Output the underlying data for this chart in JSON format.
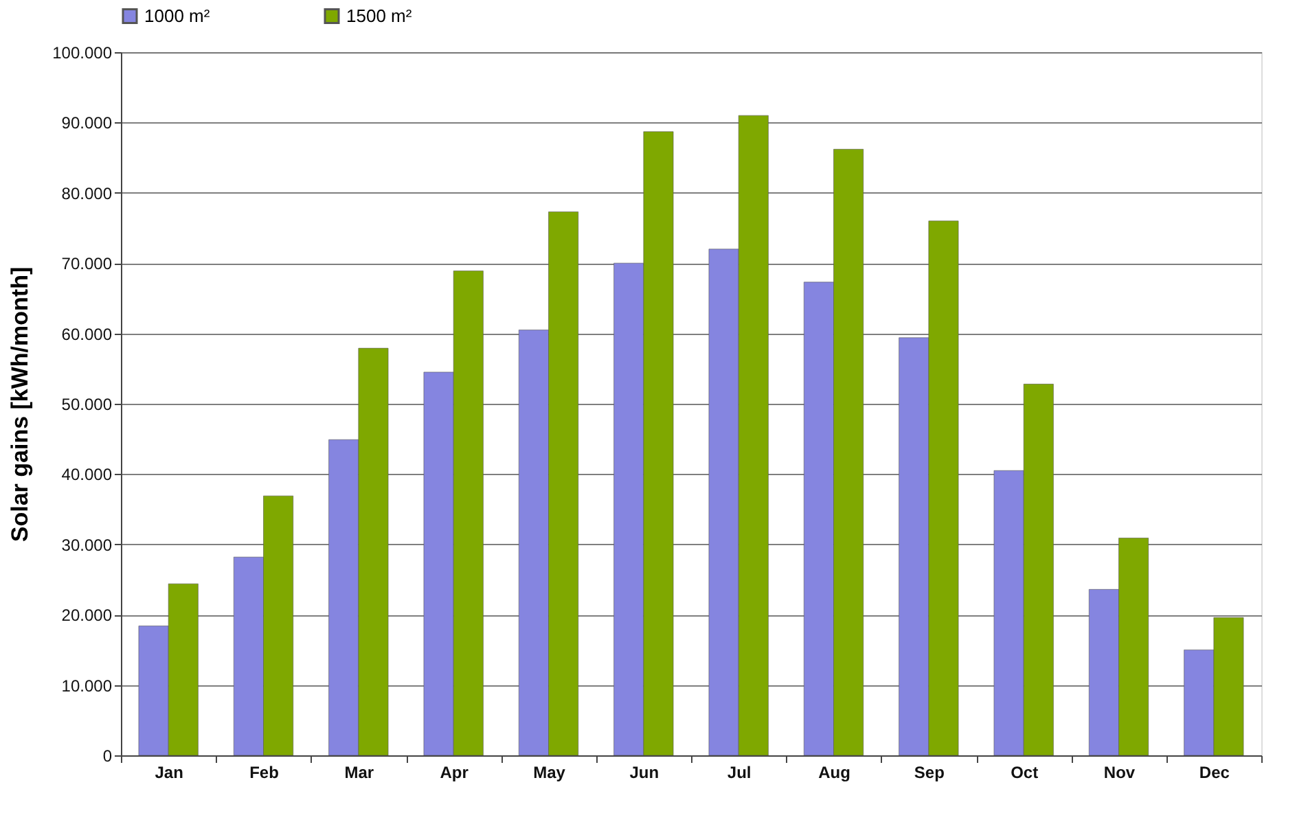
{
  "chart_data": {
    "type": "bar",
    "ylabel": "Solar gains [kWh/month]",
    "categories": [
      "Jan",
      "Feb",
      "Mar",
      "Apr",
      "May",
      "Jun",
      "Jul",
      "Aug",
      "Sep",
      "Oct",
      "Nov",
      "Dec"
    ],
    "series": [
      {
        "name": "1000 m²",
        "color": "#8585e0",
        "values": [
          18400,
          28200,
          44900,
          54500,
          60500,
          70000,
          72000,
          67300,
          59400,
          40500,
          23600,
          15000
        ]
      },
      {
        "name": "1500 m²",
        "color": "#7fa800",
        "values": [
          24400,
          36900,
          57900,
          68900,
          77300,
          88700,
          91000,
          86200,
          76000,
          52800,
          30900,
          19600
        ]
      }
    ],
    "ylim": [
      0,
      100000
    ],
    "yticks": [
      0,
      {
        "value": 10000,
        "label": "10.000"
      },
      {
        "value": 20000,
        "label": "20.000"
      },
      {
        "value": 30000,
        "label": "30.000"
      },
      {
        "value": 40000,
        "label": "40.000"
      },
      {
        "value": 50000,
        "label": "50.000"
      },
      {
        "value": 60000,
        "label": "60.000"
      },
      {
        "value": 70000,
        "label": "70.000"
      },
      {
        "value": 80000,
        "label": "80.000"
      },
      {
        "value": 90000,
        "label": "90.000"
      },
      {
        "value": 100000,
        "label": "100.000"
      }
    ],
    "grid": "y",
    "legend": "top"
  }
}
